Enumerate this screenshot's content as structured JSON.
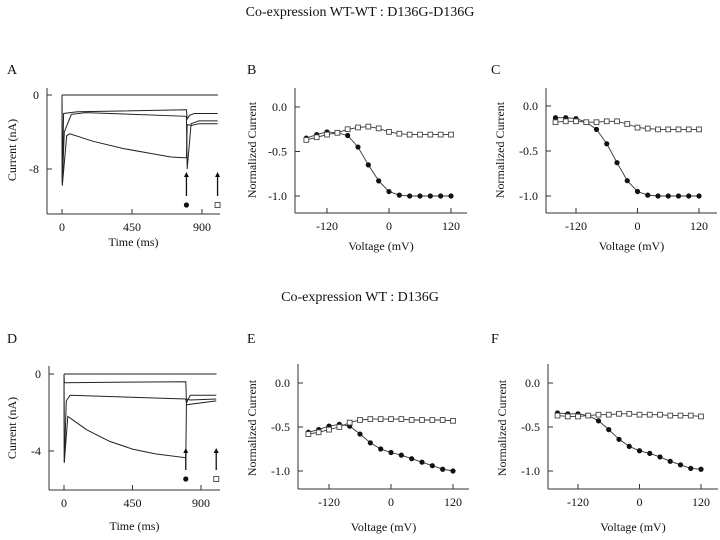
{
  "titles": {
    "top": "Co-expression  WT-WT : D136G-D136G",
    "bottom": "Co-expression WT : D136G"
  },
  "chart_data": [
    {
      "panel": "A",
      "type": "line",
      "title": "",
      "xlabel": "Time (ms)",
      "ylabel": "Current (nA)",
      "xlim": [
        -60,
        1060
      ],
      "ylim": [
        -11.5,
        1
      ],
      "xticks": [
        "0",
        "450",
        "900"
      ],
      "yticks": [
        "0",
        "-8"
      ],
      "annotations": [
        "arrow at ~800 ms with filled circle marker",
        "arrow at ~1000 ms with open square marker"
      ],
      "series": [
        {
          "name": "trace-1",
          "t": [
            0,
            2,
            800,
            802,
            1000,
            1002
          ],
          "y": [
            0,
            0,
            0,
            0,
            0,
            0
          ]
        },
        {
          "name": "trace-2",
          "t": [
            0,
            2,
            10,
            100,
            800,
            805,
            820,
            850,
            1000
          ],
          "y": [
            0,
            -9.5,
            -2,
            -1.8,
            -1.6,
            -2.6,
            -2.2,
            -2.0,
            -2.0
          ]
        },
        {
          "name": "trace-3",
          "t": [
            0,
            2,
            15,
            60,
            150,
            800,
            805,
            830,
            880,
            1000
          ],
          "y": [
            0,
            -9.5,
            -4,
            -2.1,
            -1.9,
            -2.3,
            -8,
            -3.1,
            -2.8,
            -2.8
          ]
        },
        {
          "name": "trace-4",
          "t": [
            0,
            2,
            30,
            50,
            200,
            400,
            600,
            700,
            800,
            805,
            830,
            880,
            1000
          ],
          "y": [
            0,
            -9.8,
            -4.4,
            -4.2,
            -5.0,
            -5.8,
            -6.4,
            -6.7,
            -6.8,
            -3.2,
            -3.3,
            -3.1,
            -3.1
          ]
        }
      ]
    },
    {
      "panel": "B",
      "type": "line",
      "xlabel": "Voltage (mV)",
      "ylabel": "Normalized Current",
      "xlim": [
        -170,
        135
      ],
      "ylim": [
        -1.2,
        0.2
      ],
      "xticks": [
        "-120",
        "0",
        "120"
      ],
      "yticks": [
        "0.0",
        "-0.5",
        "-1.0"
      ],
      "x": [
        -160,
        -140,
        -120,
        -100,
        -80,
        -60,
        -40,
        -20,
        0,
        20,
        40,
        60,
        80,
        100,
        120
      ],
      "series": [
        {
          "name": "filled-circle",
          "marker": "filled-circle",
          "values": [
            -0.35,
            -0.31,
            -0.28,
            -0.29,
            -0.32,
            -0.45,
            -0.65,
            -0.83,
            -0.95,
            -0.99,
            -1.0,
            -1.0,
            -1.0,
            -1.0,
            -1.0
          ]
        },
        {
          "name": "open-square",
          "marker": "open-square",
          "values": [
            -0.37,
            -0.34,
            -0.31,
            -0.29,
            -0.25,
            -0.23,
            -0.22,
            -0.24,
            -0.28,
            -0.3,
            -0.31,
            -0.31,
            -0.31,
            -0.31,
            -0.31
          ]
        }
      ]
    },
    {
      "panel": "C",
      "type": "line",
      "xlabel": "Voltage (mV)",
      "ylabel": "Normalized Current",
      "xlim": [
        -170,
        135
      ],
      "ylim": [
        -1.2,
        0.2
      ],
      "xticks": [
        "-120",
        "0",
        "120"
      ],
      "yticks": [
        "0.0",
        "-0.5",
        "-1.0"
      ],
      "x": [
        -160,
        -140,
        -120,
        -100,
        -80,
        -60,
        -40,
        -20,
        0,
        20,
        40,
        60,
        80,
        100,
        120
      ],
      "series": [
        {
          "name": "filled-circle",
          "marker": "filled-circle",
          "values": [
            -0.13,
            -0.13,
            -0.14,
            -0.18,
            -0.26,
            -0.42,
            -0.63,
            -0.83,
            -0.95,
            -0.99,
            -1.0,
            -1.0,
            -1.0,
            -1.0,
            -1.0
          ]
        },
        {
          "name": "open-square",
          "marker": "open-square",
          "values": [
            -0.18,
            -0.17,
            -0.17,
            -0.18,
            -0.18,
            -0.17,
            -0.17,
            -0.2,
            -0.24,
            -0.25,
            -0.26,
            -0.26,
            -0.26,
            -0.26,
            -0.26
          ]
        }
      ]
    },
    {
      "panel": "D",
      "type": "line",
      "xlabel": "Time (ms)",
      "ylabel": "Current (nA)",
      "xlim": [
        -60,
        1060
      ],
      "ylim": [
        -6,
        0.5
      ],
      "xticks": [
        "0",
        "450",
        "900"
      ],
      "yticks": [
        "0",
        "-4"
      ],
      "annotations": [
        "arrow at ~800 ms with filled circle marker",
        "arrow at ~1000 ms with open square marker"
      ],
      "series": [
        {
          "name": "trace-1",
          "t": [
            0,
            2,
            800,
            802,
            1000,
            1002
          ],
          "y": [
            0,
            0,
            0,
            0,
            0,
            0
          ]
        },
        {
          "name": "trace-2",
          "t": [
            0,
            2,
            800,
            805,
            1000
          ],
          "y": [
            0,
            -0.45,
            -0.4,
            -1.6,
            -1.4
          ]
        },
        {
          "name": "trace-3",
          "t": [
            0,
            2,
            15,
            40,
            800,
            805,
            830,
            1000
          ],
          "y": [
            0,
            -4.6,
            -1.4,
            -1.1,
            -1.3,
            -1.5,
            -1.1,
            -1.1
          ]
        },
        {
          "name": "trace-4",
          "t": [
            0,
            2,
            25,
            60,
            150,
            300,
            450,
            600,
            800,
            805,
            830,
            1000
          ],
          "y": [
            0,
            -4.6,
            -2.2,
            -2.4,
            -2.9,
            -3.5,
            -3.9,
            -4.15,
            -4.35,
            -1.3,
            -1.35,
            -1.3
          ]
        }
      ]
    },
    {
      "panel": "E",
      "type": "line",
      "xlabel": "Voltage (mV)",
      "ylabel": "Normalized Current",
      "xlim": [
        -170,
        135
      ],
      "ylim": [
        -1.2,
        0.2
      ],
      "xticks": [
        "-120",
        "0",
        "120"
      ],
      "yticks": [
        "0.0",
        "-0.5",
        "-1.0"
      ],
      "x": [
        -160,
        -140,
        -120,
        -100,
        -80,
        -60,
        -40,
        -20,
        0,
        20,
        40,
        60,
        80,
        100,
        120
      ],
      "series": [
        {
          "name": "filled-circle",
          "marker": "filled-circle",
          "values": [
            -0.56,
            -0.53,
            -0.49,
            -0.47,
            -0.49,
            -0.58,
            -0.68,
            -0.75,
            -0.79,
            -0.82,
            -0.86,
            -0.9,
            -0.94,
            -0.98,
            -1.0
          ]
        },
        {
          "name": "open-square",
          "marker": "open-square",
          "values": [
            -0.58,
            -0.56,
            -0.53,
            -0.5,
            -0.45,
            -0.42,
            -0.41,
            -0.41,
            -0.41,
            -0.41,
            -0.42,
            -0.42,
            -0.42,
            -0.42,
            -0.43
          ]
        }
      ]
    },
    {
      "panel": "F",
      "type": "line",
      "xlabel": "Voltage (mV)",
      "ylabel": "Normalized Current",
      "xlim": [
        -170,
        135
      ],
      "ylim": [
        -1.2,
        0.2
      ],
      "xticks": [
        "-120",
        "0",
        "120"
      ],
      "yticks": [
        "0.0",
        "-0.5",
        "-1.0"
      ],
      "x": [
        -160,
        -140,
        -120,
        -100,
        -80,
        -60,
        -40,
        -20,
        0,
        20,
        40,
        60,
        80,
        100,
        120
      ],
      "series": [
        {
          "name": "filled-circle",
          "marker": "filled-circle",
          "values": [
            -0.34,
            -0.35,
            -0.35,
            -0.37,
            -0.43,
            -0.53,
            -0.64,
            -0.72,
            -0.77,
            -0.8,
            -0.84,
            -0.89,
            -0.93,
            -0.97,
            -0.98
          ]
        },
        {
          "name": "open-square",
          "marker": "open-square",
          "values": [
            -0.37,
            -0.38,
            -0.38,
            -0.37,
            -0.36,
            -0.36,
            -0.35,
            -0.35,
            -0.36,
            -0.36,
            -0.36,
            -0.37,
            -0.37,
            -0.37,
            -0.38
          ]
        }
      ]
    }
  ]
}
